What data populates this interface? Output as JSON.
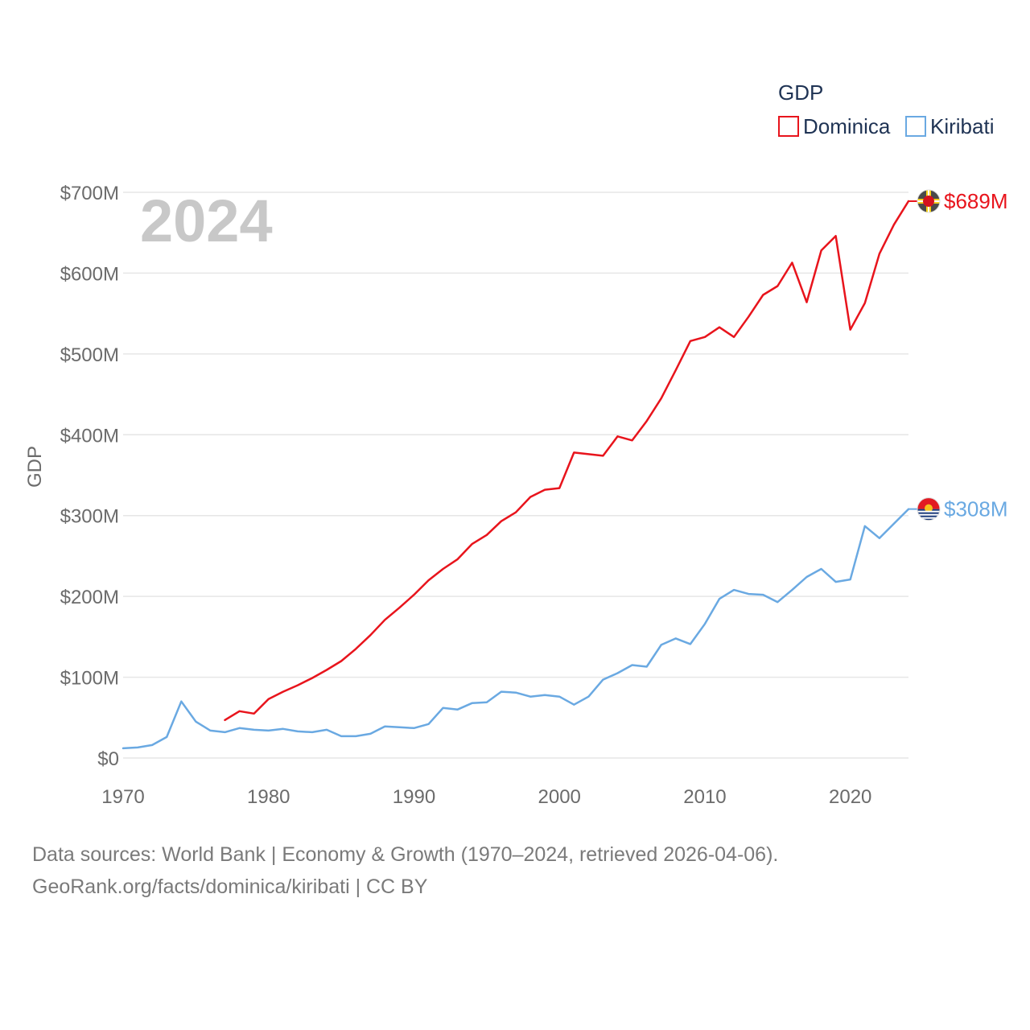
{
  "chart_data": {
    "type": "line",
    "year_watermark": "2024",
    "ylabel": "GDP",
    "legend": {
      "title": "GDP",
      "position": "top-right"
    },
    "ylim": [
      0,
      700000000
    ],
    "xlim": [
      1970,
      2024
    ],
    "y_ticks": [
      {
        "value": 0,
        "label": "$0"
      },
      {
        "value": 100000000,
        "label": "$100M"
      },
      {
        "value": 200000000,
        "label": "$200M"
      },
      {
        "value": 300000000,
        "label": "$300M"
      },
      {
        "value": 400000000,
        "label": "$400M"
      },
      {
        "value": 500000000,
        "label": "$500M"
      },
      {
        "value": 600000000,
        "label": "$600M"
      },
      {
        "value": 700000000,
        "label": "$700M"
      }
    ],
    "x_ticks": [
      {
        "value": 1970,
        "label": "1970"
      },
      {
        "value": 1980,
        "label": "1980"
      },
      {
        "value": 1990,
        "label": "1990"
      },
      {
        "value": 2000,
        "label": "2000"
      },
      {
        "value": 2010,
        "label": "2010"
      },
      {
        "value": 2020,
        "label": "2020"
      }
    ],
    "series": [
      {
        "name": "Dominica",
        "color": "#e8141c",
        "end_label": "$689M",
        "flag_icon": "dominica-flag-icon",
        "points": [
          [
            1977,
            47
          ],
          [
            1978,
            58
          ],
          [
            1979,
            55
          ],
          [
            1980,
            73
          ],
          [
            1981,
            82
          ],
          [
            1982,
            90
          ],
          [
            1983,
            99
          ],
          [
            1984,
            109
          ],
          [
            1985,
            120
          ],
          [
            1986,
            135
          ],
          [
            1987,
            152
          ],
          [
            1988,
            171
          ],
          [
            1989,
            186
          ],
          [
            1990,
            202
          ],
          [
            1991,
            220
          ],
          [
            1992,
            234
          ],
          [
            1993,
            246
          ],
          [
            1994,
            265
          ],
          [
            1995,
            276
          ],
          [
            1996,
            293
          ],
          [
            1997,
            304
          ],
          [
            1998,
            323
          ],
          [
            1999,
            332
          ],
          [
            2000,
            334
          ],
          [
            2001,
            378
          ],
          [
            2002,
            376
          ],
          [
            2003,
            374
          ],
          [
            2004,
            398
          ],
          [
            2005,
            393
          ],
          [
            2006,
            417
          ],
          [
            2007,
            445
          ],
          [
            2008,
            480
          ],
          [
            2009,
            516
          ],
          [
            2010,
            521
          ],
          [
            2011,
            533
          ],
          [
            2012,
            521
          ],
          [
            2013,
            546
          ],
          [
            2014,
            573
          ],
          [
            2015,
            584
          ],
          [
            2016,
            613
          ],
          [
            2017,
            564
          ],
          [
            2018,
            628
          ],
          [
            2019,
            646
          ],
          [
            2020,
            530
          ],
          [
            2021,
            563
          ],
          [
            2022,
            624
          ],
          [
            2023,
            660
          ],
          [
            2024,
            689
          ]
        ]
      },
      {
        "name": "Kiribati",
        "color": "#6aa9e2",
        "end_label": "$308M",
        "flag_icon": "kiribati-flag-icon",
        "points": [
          [
            1970,
            12
          ],
          [
            1971,
            13
          ],
          [
            1972,
            16
          ],
          [
            1973,
            26
          ],
          [
            1974,
            70
          ],
          [
            1975,
            45
          ],
          [
            1976,
            34
          ],
          [
            1977,
            32
          ],
          [
            1978,
            37
          ],
          [
            1979,
            35
          ],
          [
            1980,
            34
          ],
          [
            1981,
            36
          ],
          [
            1982,
            33
          ],
          [
            1983,
            32
          ],
          [
            1984,
            35
          ],
          [
            1985,
            27
          ],
          [
            1986,
            27
          ],
          [
            1987,
            30
          ],
          [
            1988,
            39
          ],
          [
            1989,
            38
          ],
          [
            1990,
            37
          ],
          [
            1991,
            42
          ],
          [
            1992,
            62
          ],
          [
            1993,
            60
          ],
          [
            1994,
            68
          ],
          [
            1995,
            69
          ],
          [
            1996,
            82
          ],
          [
            1997,
            81
          ],
          [
            1998,
            76
          ],
          [
            1999,
            78
          ],
          [
            2000,
            76
          ],
          [
            2001,
            66
          ],
          [
            2002,
            76
          ],
          [
            2003,
            97
          ],
          [
            2004,
            105
          ],
          [
            2005,
            115
          ],
          [
            2006,
            113
          ],
          [
            2007,
            140
          ],
          [
            2008,
            148
          ],
          [
            2009,
            141
          ],
          [
            2010,
            166
          ],
          [
            2011,
            197
          ],
          [
            2012,
            208
          ],
          [
            2013,
            203
          ],
          [
            2014,
            202
          ],
          [
            2015,
            193
          ],
          [
            2016,
            208
          ],
          [
            2017,
            224
          ],
          [
            2018,
            234
          ],
          [
            2019,
            218
          ],
          [
            2020,
            221
          ],
          [
            2021,
            287
          ],
          [
            2022,
            272
          ],
          [
            2023,
            290
          ],
          [
            2024,
            308
          ]
        ]
      }
    ],
    "value_unit": "millions USD"
  },
  "source": {
    "line1": "Data sources: World Bank | Economy & Growth (1970–2024, retrieved 2026-04-06).",
    "line2": "GeoRank.org/facts/dominica/kiribati | CC BY"
  }
}
